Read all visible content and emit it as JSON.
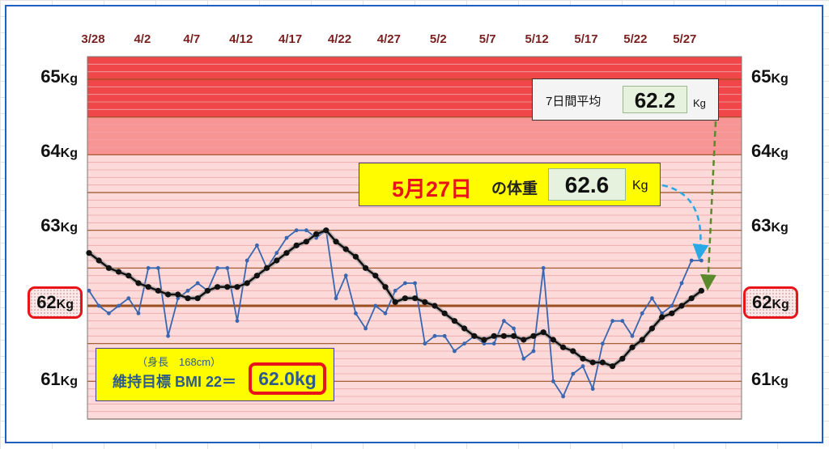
{
  "chart_data": {
    "type": "line",
    "x_tick_labels": [
      "3/28",
      "4/2",
      "4/7",
      "4/12",
      "4/17",
      "4/22",
      "4/27",
      "5/2",
      "5/7",
      "5/12",
      "5/17",
      "5/22",
      "5/27"
    ],
    "y_tick_labels": [
      {
        "value": 65,
        "num": "65",
        "unit": "Kg"
      },
      {
        "value": 64,
        "num": "64",
        "unit": "Kg"
      },
      {
        "value": 63,
        "num": "63",
        "unit": "Kg"
      },
      {
        "value": 62,
        "num": "62",
        "unit": "Kg"
      },
      {
        "value": 61,
        "num": "61",
        "unit": "Kg"
      }
    ],
    "highlighted_y_value": 62,
    "ylim": [
      60.5,
      65.3
    ],
    "x_start_date": "3/27",
    "series": [
      {
        "role": "daily",
        "color": "#3a66b0",
        "values": [
          62.2,
          62.0,
          61.9,
          62.0,
          62.1,
          61.9,
          62.5,
          62.5,
          61.6,
          62.1,
          62.2,
          62.3,
          62.2,
          62.5,
          62.5,
          61.8,
          62.6,
          62.8,
          62.5,
          62.7,
          62.9,
          63.0,
          63.0,
          62.9,
          63.0,
          62.1,
          62.4,
          61.9,
          61.7,
          62.0,
          61.9,
          62.2,
          62.3,
          62.3,
          61.5,
          61.6,
          61.6,
          61.4,
          61.5,
          61.6,
          61.5,
          61.5,
          61.8,
          61.7,
          61.3,
          61.4,
          62.5,
          61.0,
          60.8,
          61.1,
          61.2,
          60.9,
          61.5,
          61.8,
          61.8,
          61.6,
          61.9,
          62.1,
          61.9,
          62.0,
          62.3,
          62.6,
          62.6
        ]
      },
      {
        "role": "7-day-average",
        "color": "#111111",
        "values": [
          62.7,
          62.6,
          62.5,
          62.45,
          62.4,
          62.3,
          62.25,
          62.2,
          62.15,
          62.15,
          62.1,
          62.1,
          62.2,
          62.25,
          62.25,
          62.25,
          62.3,
          62.4,
          62.5,
          62.6,
          62.7,
          62.8,
          62.85,
          62.95,
          63.0,
          62.85,
          62.75,
          62.65,
          62.5,
          62.4,
          62.25,
          62.05,
          62.1,
          62.1,
          62.05,
          62.0,
          61.9,
          61.8,
          61.7,
          61.6,
          61.55,
          61.6,
          61.6,
          61.6,
          61.55,
          61.6,
          61.65,
          61.55,
          61.45,
          61.4,
          61.3,
          61.25,
          61.25,
          61.2,
          61.3,
          61.45,
          61.55,
          61.7,
          61.85,
          61.9,
          62.0,
          62.1,
          62.2
        ]
      }
    ],
    "bands": [
      {
        "from": 64.5,
        "to": 65.3,
        "color": "#f0464a"
      },
      {
        "from": 64.0,
        "to": 64.5,
        "color": "#f79494"
      },
      {
        "from": 60.5,
        "to": 64.0,
        "color": "#fcdada"
      }
    ]
  },
  "avg_box": {
    "label": "7日間平均",
    "value": "62.2",
    "unit": "Kg"
  },
  "day_box": {
    "date": "5月27日",
    "label": "の体重",
    "value": "62.6",
    "unit": "Kg"
  },
  "bmi_box": {
    "height": "（身長　168cm）",
    "target": "維持目標 BMI 22＝",
    "goal": "62.0kg"
  },
  "colors": {
    "highlight_red": "#e8141a",
    "daily_line": "#3a66b0",
    "avg_line": "#111111",
    "arrow_blue": "#29a8e6",
    "arrow_green": "#5a8a2b"
  }
}
